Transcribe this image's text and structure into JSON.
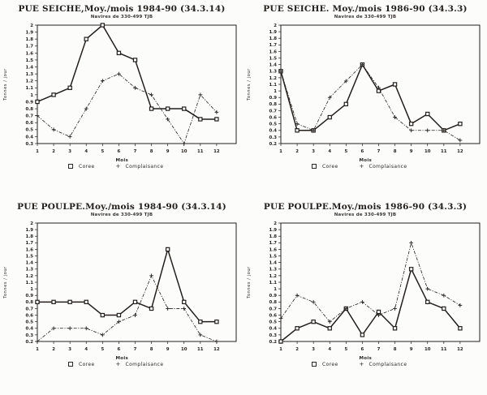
{
  "page": {
    "ink": "#221f1b",
    "paper": "#fcfcfa"
  },
  "chart_data": [
    {
      "type": "line",
      "title": "PUE SEICHE,Moy./mois 1984-90 (34.3.14)",
      "subtitle": "Navires de 330-499 TJB",
      "ylabel": "Tonnes / jour",
      "xlabel": "Mois",
      "ymin": 0.3,
      "ymax": 2.0,
      "ystep": 0.1,
      "grid": false,
      "legend_position": "bottom",
      "categories": [
        1,
        2,
        3,
        4,
        5,
        6,
        7,
        8,
        9,
        10,
        11,
        12
      ],
      "series": [
        {
          "name": "Coree",
          "marker": "square",
          "values": [
            0.9,
            1.0,
            1.1,
            1.8,
            2.0,
            1.6,
            1.5,
            0.8,
            0.8,
            0.8,
            0.65,
            0.65
          ]
        },
        {
          "name": "Complaisance",
          "marker": "plus",
          "values": [
            0.7,
            0.5,
            0.4,
            0.8,
            1.2,
            1.3,
            1.1,
            1.0,
            0.65,
            0.3,
            1.0,
            0.75
          ]
        }
      ]
    },
    {
      "type": "line",
      "title": "PUE SEICHE. Moy./mois 1986-90 (34.3.3)",
      "subtitle": "Navires de 330-499 TJB",
      "ylabel": "Tonnes / jour",
      "xlabel": "Mois",
      "ymin": 0.2,
      "ymax": 2.0,
      "ystep": 0.1,
      "grid": false,
      "legend_position": "bottom",
      "categories": [
        1,
        2,
        3,
        4,
        5,
        6,
        7,
        8,
        9,
        10,
        11,
        12
      ],
      "series": [
        {
          "name": "Coree",
          "marker": "square",
          "values": [
            1.3,
            0.4,
            0.4,
            0.6,
            0.8,
            1.4,
            1.0,
            1.1,
            0.5,
            0.65,
            0.4,
            0.5
          ]
        },
        {
          "name": "Complaisance",
          "marker": "plus",
          "values": [
            1.3,
            0.5,
            0.4,
            0.9,
            1.15,
            1.4,
            1.05,
            0.6,
            0.4,
            0.4,
            0.4,
            0.25
          ]
        }
      ]
    },
    {
      "type": "line",
      "title": "PUE POULPE.Moy./mois 1984-90 (34.3.14)",
      "subtitle": "Navires de 330-499 TJB",
      "ylabel": "Tonnes / jour",
      "xlabel": "Mois",
      "ymin": 0.2,
      "ymax": 2.0,
      "ystep": 0.1,
      "grid": false,
      "legend_position": "bottom",
      "categories": [
        1,
        2,
        3,
        4,
        5,
        6,
        7,
        8,
        9,
        10,
        11,
        12
      ],
      "series": [
        {
          "name": "Coree",
          "marker": "square",
          "values": [
            0.8,
            0.8,
            0.8,
            0.8,
            0.6,
            0.6,
            0.8,
            0.7,
            1.6,
            0.8,
            0.5,
            0.5
          ]
        },
        {
          "name": "Complaisance",
          "marker": "plus",
          "values": [
            0.2,
            0.4,
            0.4,
            0.4,
            0.3,
            0.5,
            0.6,
            1.2,
            0.7,
            0.7,
            0.3,
            0.2
          ]
        }
      ]
    },
    {
      "type": "line",
      "title": "PUE POULPE.Moy./mois 1986-90 (34.3.3)",
      "subtitle": "Navires de 330-499 TJB",
      "ylabel": "Tonnes / jour",
      "xlabel": "Mois",
      "ymin": 0.2,
      "ymax": 2.0,
      "ystep": 0.1,
      "grid": false,
      "legend_position": "bottom",
      "categories": [
        1,
        2,
        3,
        4,
        5,
        6,
        7,
        8,
        9,
        10,
        11,
        12
      ],
      "series": [
        {
          "name": "Coree",
          "marker": "square",
          "values": [
            0.2,
            0.4,
            0.5,
            0.4,
            0.7,
            0.3,
            0.65,
            0.4,
            1.3,
            0.8,
            0.7,
            0.4
          ]
        },
        {
          "name": "Complaisance",
          "marker": "plus",
          "values": [
            0.55,
            0.9,
            0.8,
            0.5,
            0.7,
            0.8,
            0.6,
            0.7,
            1.7,
            1.0,
            0.9,
            0.75
          ]
        }
      ]
    }
  ]
}
